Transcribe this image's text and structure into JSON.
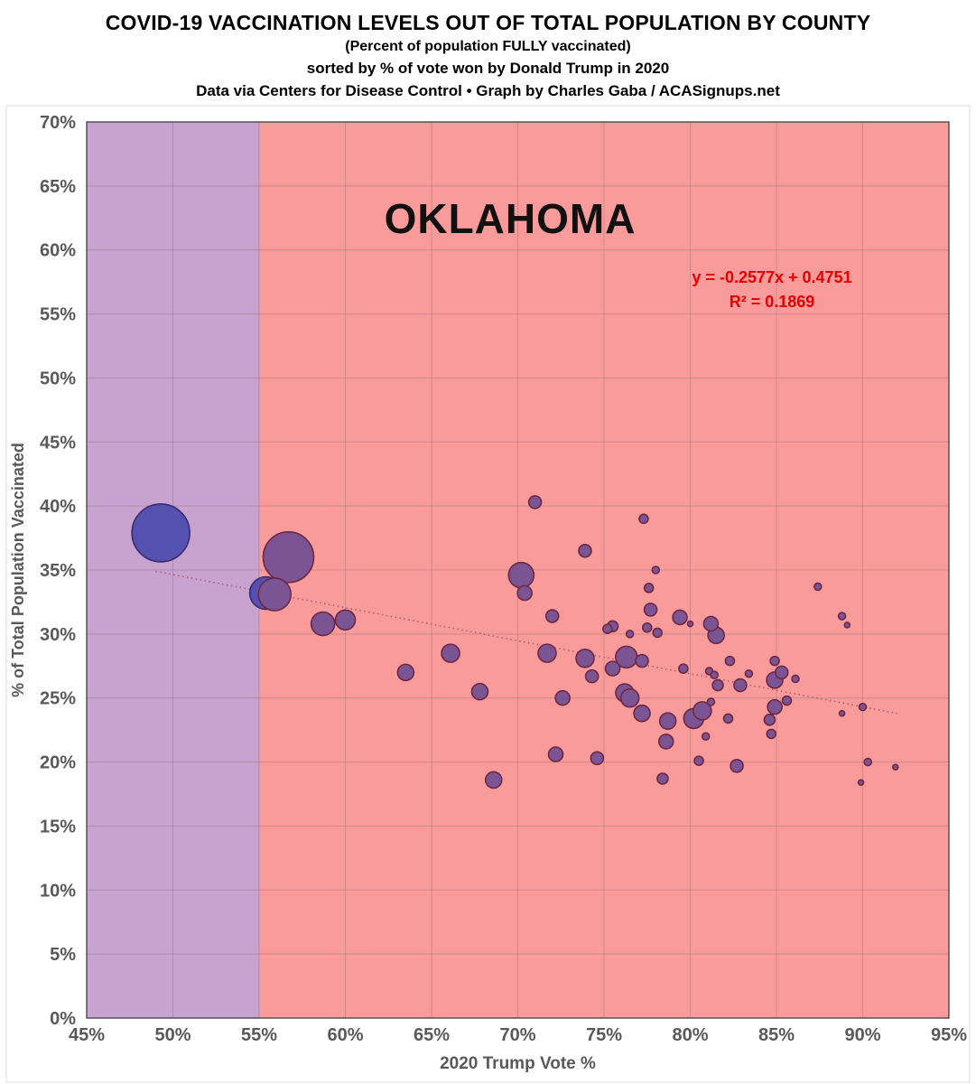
{
  "header": {
    "title": "COVID-19 VACCINATION LEVELS OUT OF TOTAL POPULATION BY COUNTY",
    "subtitle": "(Percent of population FULLY vaccinated)",
    "sort_note": "sorted by % of vote won by Donald Trump in 2020",
    "credit": "Data via Centers for Disease Control • Graph by Charles Gaba / ACASignups.net"
  },
  "chart_data": {
    "type": "scatter",
    "title": "OKLAHOMA",
    "xlabel": "2020 Trump Vote %",
    "ylabel": "% of Total Population Vaccinated",
    "xlim": [
      45,
      95
    ],
    "ylim": [
      0,
      70
    ],
    "x_tick_step": 5,
    "y_tick_step": 5,
    "x_ticks": [
      "45%",
      "50%",
      "55%",
      "60%",
      "65%",
      "70%",
      "75%",
      "80%",
      "85%",
      "90%",
      "95%"
    ],
    "y_ticks": [
      "0%",
      "5%",
      "10%",
      "15%",
      "20%",
      "25%",
      "30%",
      "35%",
      "40%",
      "45%",
      "50%",
      "55%",
      "60%",
      "65%",
      "70%"
    ],
    "grid": true,
    "annotations": {
      "equation": "y = -0.2577x + 0.4751",
      "r_squared": "R² = 0.1869"
    },
    "trendline": {
      "style": "dotted",
      "x_start": 49,
      "y_start": 34.9,
      "x_end": 92,
      "y_end": 23.8
    },
    "regions": [
      {
        "label": "under-55-trump",
        "x0": 45,
        "x1": 55,
        "color": "#c9a3cf"
      },
      {
        "label": "over-55-trump",
        "x0": 55,
        "x1": 95,
        "color": "#fa9b9b"
      }
    ],
    "colors": {
      "blue_county": "#5551b0",
      "blue_stroke": "#3c2a6e",
      "red_county": "#7b5494",
      "bubble_stroke": "#6e2742",
      "equation_text": "#e60000",
      "axis_text": "#595959",
      "grid_line": "rgba(90,90,90,0.28)",
      "plot_border": "#3f3f3f",
      "trend_line": "#9c4f63"
    },
    "points": [
      [
        49.3,
        37.9,
        32,
        "b"
      ],
      [
        55.4,
        33.2,
        18,
        "b"
      ],
      [
        56.7,
        36.0,
        28,
        "p"
      ],
      [
        55.9,
        33.1,
        18,
        "p"
      ],
      [
        58.7,
        30.8,
        13,
        "p"
      ],
      [
        60.0,
        31.1,
        11,
        "p"
      ],
      [
        63.5,
        27.0,
        9,
        "p"
      ],
      [
        66.1,
        28.5,
        10,
        "p"
      ],
      [
        67.8,
        25.5,
        9,
        "p"
      ],
      [
        68.6,
        18.6,
        9,
        "p"
      ],
      [
        70.2,
        34.6,
        14,
        "p"
      ],
      [
        70.4,
        33.2,
        8,
        "p"
      ],
      [
        71.0,
        40.3,
        7,
        "p"
      ],
      [
        71.7,
        28.5,
        10,
        "p"
      ],
      [
        72.0,
        31.4,
        7,
        "p"
      ],
      [
        72.2,
        20.6,
        8,
        "p"
      ],
      [
        72.6,
        25.0,
        8,
        "p"
      ],
      [
        73.9,
        36.5,
        7,
        "p"
      ],
      [
        73.9,
        28.1,
        10,
        "p"
      ],
      [
        74.3,
        26.7,
        7,
        "p"
      ],
      [
        74.6,
        20.3,
        7,
        "p"
      ],
      [
        75.2,
        30.4,
        5,
        "p"
      ],
      [
        75.5,
        30.6,
        6,
        "p"
      ],
      [
        75.5,
        27.3,
        8,
        "p"
      ],
      [
        76.2,
        25.4,
        10,
        "p"
      ],
      [
        76.3,
        28.2,
        12,
        "p"
      ],
      [
        76.5,
        30.0,
        4,
        "p"
      ],
      [
        76.5,
        25.0,
        10,
        "p"
      ],
      [
        77.2,
        27.9,
        7,
        "p"
      ],
      [
        77.2,
        23.8,
        9,
        "p"
      ],
      [
        77.3,
        39.0,
        5,
        "p"
      ],
      [
        77.5,
        30.5,
        5,
        "p"
      ],
      [
        77.6,
        33.6,
        5,
        "p"
      ],
      [
        77.7,
        31.9,
        7,
        "p"
      ],
      [
        78.0,
        35.0,
        4,
        "p"
      ],
      [
        78.1,
        30.1,
        5,
        "p"
      ],
      [
        78.4,
        18.7,
        6,
        "p"
      ],
      [
        78.6,
        21.6,
        8,
        "p"
      ],
      [
        78.7,
        23.2,
        9,
        "p"
      ],
      [
        79.4,
        31.3,
        8,
        "p"
      ],
      [
        79.6,
        27.3,
        5,
        "p"
      ],
      [
        80.0,
        30.8,
        3,
        "p"
      ],
      [
        80.2,
        23.4,
        11,
        "p"
      ],
      [
        80.5,
        20.1,
        5,
        "p"
      ],
      [
        80.7,
        24.0,
        10,
        "p"
      ],
      [
        80.9,
        22.0,
        4,
        "p"
      ],
      [
        81.1,
        27.1,
        4,
        "p"
      ],
      [
        81.2,
        30.8,
        8,
        "p"
      ],
      [
        81.2,
        24.7,
        4,
        "p"
      ],
      [
        81.4,
        26.8,
        4,
        "p"
      ],
      [
        81.5,
        29.9,
        9,
        "p"
      ],
      [
        81.6,
        26.0,
        6,
        "p"
      ],
      [
        82.2,
        23.4,
        5,
        "p"
      ],
      [
        82.3,
        27.9,
        5,
        "p"
      ],
      [
        82.7,
        19.7,
        7,
        "p"
      ],
      [
        82.9,
        26.0,
        7,
        "p"
      ],
      [
        83.4,
        26.9,
        4,
        "p"
      ],
      [
        84.6,
        23.3,
        6,
        "p"
      ],
      [
        84.7,
        22.2,
        5,
        "p"
      ],
      [
        84.9,
        27.9,
        5,
        "p"
      ],
      [
        84.9,
        26.4,
        9,
        "p"
      ],
      [
        84.9,
        24.3,
        8,
        "p"
      ],
      [
        85.3,
        27.0,
        7,
        "p"
      ],
      [
        85.6,
        24.8,
        5,
        "p"
      ],
      [
        86.1,
        26.5,
        4,
        "p"
      ],
      [
        87.4,
        33.7,
        4,
        "p"
      ],
      [
        88.8,
        31.4,
        4,
        "p"
      ],
      [
        88.8,
        23.8,
        3,
        "p"
      ],
      [
        89.1,
        30.7,
        3,
        "p"
      ],
      [
        89.9,
        18.4,
        3,
        "p"
      ],
      [
        90.0,
        24.3,
        4,
        "p"
      ],
      [
        90.3,
        20.0,
        4,
        "p"
      ],
      [
        91.9,
        19.6,
        3,
        "p"
      ]
    ]
  }
}
